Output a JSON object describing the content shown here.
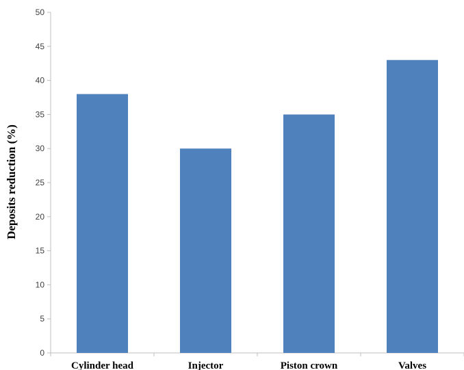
{
  "chart_data": {
    "type": "bar",
    "categories": [
      "Cylinder head",
      "Injector",
      "Piston crown",
      "Valves"
    ],
    "values": [
      38,
      30,
      35,
      43
    ],
    "title": "",
    "xlabel": "",
    "ylabel": "Deposits reduction (%)",
    "ylim": [
      0,
      50
    ],
    "yticks": [
      0,
      5,
      10,
      15,
      20,
      25,
      30,
      35,
      40,
      45,
      50
    ],
    "grid": false,
    "legend": "none",
    "bar_color": "#4F81BD",
    "axis_color": "#BFBFBF"
  }
}
